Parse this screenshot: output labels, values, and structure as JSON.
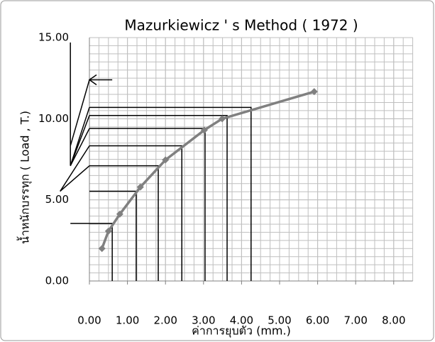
{
  "chart_data": {
    "type": "line",
    "title": "Mazurkiewicz ' s Method ( 1972 )",
    "xlabel": "ค่าการยุบตัว (mm.)",
    "ylabel": "น้ำหนักบรรทุก ( Load , T.)",
    "xlim": [
      0,
      8.5
    ],
    "ylim": [
      0,
      15
    ],
    "xticks": [
      {
        "value": 0,
        "label": "0.00"
      },
      {
        "value": 1,
        "label": "1.00"
      },
      {
        "value": 2,
        "label": "2.00"
      },
      {
        "value": 3,
        "label": "3.00"
      },
      {
        "value": 4,
        "label": "4.00"
      },
      {
        "value": 5,
        "label": "5.00"
      },
      {
        "value": 6,
        "label": "6.00"
      },
      {
        "value": 7,
        "label": "7.00"
      },
      {
        "value": 8,
        "label": "8.00"
      }
    ],
    "yticks": [
      {
        "value": 0,
        "label": "0.00"
      },
      {
        "value": 5,
        "label": "5.00"
      },
      {
        "value": 10,
        "label": "10.00"
      },
      {
        "value": 15,
        "label": "15.00"
      }
    ],
    "grid": {
      "x_divisions": 4,
      "y_divisions": 10
    },
    "series": [
      {
        "color": "#808080",
        "x": [
          0.33,
          0.5,
          0.8,
          1.34,
          2.0,
          3.02,
          3.49,
          5.91
        ],
        "values": [
          2.0,
          3.07,
          4.12,
          5.79,
          7.46,
          9.3,
          10.0,
          11.67
        ]
      }
    ],
    "construction_lines": [
      {
        "x": [
          0,
          0.6,
          0.6
        ],
        "y": [
          3.55,
          3.55,
          0
        ]
      },
      {
        "x": [
          0,
          1.23,
          1.23
        ],
        "y": [
          5.53,
          5.53,
          0
        ]
      },
      {
        "x": [
          0,
          1.81,
          1.81
        ],
        "y": [
          7.1,
          7.1,
          0
        ]
      },
      {
        "x": [
          0,
          2.43,
          2.43
        ],
        "y": [
          8.33,
          8.33,
          0
        ]
      },
      {
        "x": [
          0,
          3.04,
          3.04
        ],
        "y": [
          9.4,
          9.4,
          0
        ]
      },
      {
        "x": [
          0,
          3.62,
          3.62
        ],
        "y": [
          10.2,
          10.2,
          0
        ]
      },
      {
        "x": [
          0,
          4.25,
          4.25
        ],
        "y": [
          10.7,
          10.7,
          0
        ]
      },
      {
        "x": [
          0,
          -0.77
        ],
        "y": [
          7.1,
          5.53
        ]
      },
      {
        "x": [
          0,
          -0.77
        ],
        "y": [
          8.33,
          5.53
        ]
      },
      {
        "x": [
          0,
          -0.5
        ],
        "y": [
          9.4,
          7.1
        ]
      },
      {
        "x": [
          0,
          -0.5
        ],
        "y": [
          10.2,
          7.1
        ]
      },
      {
        "x": [
          0,
          -0.5
        ],
        "y": [
          10.7,
          7.1
        ]
      },
      {
        "x": [
          0,
          -0.5
        ],
        "y": [
          12.4,
          8.33
        ]
      },
      {
        "x": [
          -0.5,
          -0.5
        ],
        "y": [
          7.1,
          14.7
        ]
      },
      {
        "x": [
          0,
          -0.5
        ],
        "y": [
          3.55,
          3.55
        ]
      },
      {
        "x": [
          0.6,
          0
        ],
        "y": [
          12.4,
          12.4
        ]
      }
    ]
  }
}
